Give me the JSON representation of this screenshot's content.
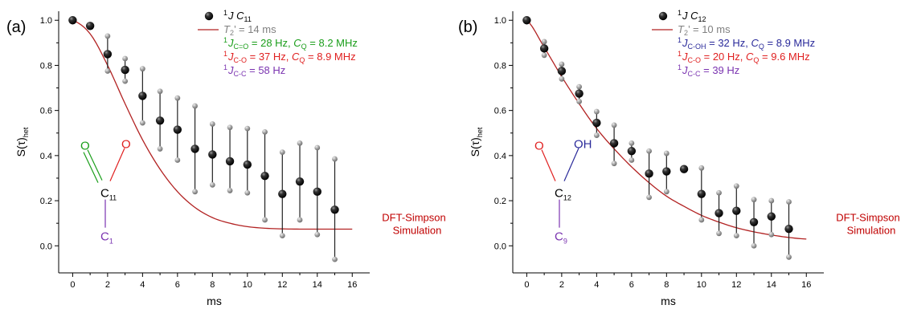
{
  "colors": {
    "sim": "#b22222",
    "gray": "#808080",
    "green": "#1a9e1a",
    "red": "#e02020",
    "purple": "#7a33b0",
    "blue": "#2a2a9a"
  },
  "chart_data": [
    {
      "type": "scatter",
      "panel_label": "(a)",
      "xlabel": "ms",
      "ylabel": "S(τ)",
      "ylabel_sub": "het",
      "xlim": [
        -0.8,
        17
      ],
      "ylim": [
        -0.12,
        1.04
      ],
      "xticks": [
        "0",
        "2",
        "4",
        "6",
        "8",
        "10",
        "12",
        "14",
        "16"
      ],
      "yticks": [
        "0.0",
        "0.2",
        "0.4",
        "0.6",
        "0.8",
        "1.0"
      ],
      "series": [
        {
          "name": "¹J C11",
          "x": [
            0,
            1,
            2,
            3,
            4,
            5,
            6,
            7,
            8,
            9,
            10,
            11,
            12,
            13,
            14,
            15
          ],
          "y": [
            1.0,
            0.975,
            0.85,
            0.78,
            0.665,
            0.555,
            0.515,
            0.43,
            0.405,
            0.375,
            0.36,
            0.31,
            0.23,
            0.285,
            0.24,
            0.16
          ],
          "err_lo": [
            1.0,
            0.975,
            0.775,
            0.73,
            0.545,
            0.43,
            0.38,
            0.24,
            0.27,
            0.245,
            0.235,
            0.115,
            0.045,
            0.115,
            0.05,
            -0.06
          ],
          "err_hi": [
            1.0,
            0.975,
            0.93,
            0.83,
            0.785,
            0.685,
            0.655,
            0.62,
            0.54,
            0.525,
            0.52,
            0.505,
            0.415,
            0.455,
            0.435,
            0.385
          ]
        }
      ],
      "simulation": {
        "T2": 14,
        "x": [
          0,
          1,
          2,
          3,
          4,
          5,
          6,
          7,
          8,
          9,
          10,
          11,
          12,
          13,
          14,
          15,
          16
        ],
        "y": [
          1.0,
          0.94,
          0.8,
          0.63,
          0.47,
          0.34,
          0.24,
          0.17,
          0.125,
          0.1,
          0.085,
          0.078,
          0.075,
          0.074,
          0.074,
          0.074,
          0.074
        ]
      },
      "legend": {
        "data_label": "J C",
        "data_sup": "1",
        "data_sub": "11",
        "t2_label": "= 14 ms",
        "lines": [
          {
            "sub": "C=O",
            "value": "= 28 Hz, ",
            "cq": "= 8.2 MHz",
            "color": "green"
          },
          {
            "sub": "C-O",
            "value": "= 37 Hz, ",
            "cq": "= 8.9 MHz",
            "color": "red"
          },
          {
            "sub": "C-C",
            "value": "= 58 Hz",
            "cq": "",
            "color": "purple"
          }
        ]
      },
      "annotation": [
        "DFT-Simpson",
        "Simulation"
      ],
      "molecule": {
        "o1": "O",
        "o2": "O",
        "c": "C",
        "c_sub": "11",
        "c2": "C",
        "c2_sub": "1"
      }
    },
    {
      "type": "scatter",
      "panel_label": "(b)",
      "xlabel": "ms",
      "ylabel": "S(τ)",
      "ylabel_sub": "het",
      "xlim": [
        -0.8,
        17
      ],
      "ylim": [
        -0.12,
        1.04
      ],
      "xticks": [
        "0",
        "2",
        "4",
        "6",
        "8",
        "10",
        "12",
        "14",
        "16"
      ],
      "yticks": [
        "0.0",
        "0.2",
        "0.4",
        "0.6",
        "0.8",
        "1.0"
      ],
      "series": [
        {
          "name": "¹J C12",
          "x": [
            0,
            1,
            2,
            3,
            4,
            5,
            6,
            7,
            8,
            9,
            10,
            11,
            12,
            13,
            14,
            15
          ],
          "y": [
            1.0,
            0.875,
            0.775,
            0.675,
            0.545,
            0.455,
            0.42,
            0.32,
            0.33,
            0.34,
            0.23,
            0.145,
            0.155,
            0.105,
            0.13,
            0.075
          ],
          "err_lo": [
            1.0,
            0.845,
            0.74,
            0.64,
            0.49,
            0.365,
            0.38,
            0.215,
            0.24,
            0.34,
            0.115,
            0.055,
            0.045,
            0.0,
            0.05,
            -0.05
          ],
          "err_hi": [
            1.0,
            0.905,
            0.805,
            0.705,
            0.595,
            0.535,
            0.455,
            0.42,
            0.41,
            0.34,
            0.345,
            0.235,
            0.265,
            0.205,
            0.2,
            0.195
          ]
        }
      ],
      "simulation": {
        "T2": 10,
        "x": [
          0,
          1,
          2,
          3,
          4,
          5,
          6,
          7,
          8,
          9,
          10,
          11,
          12,
          13,
          14,
          15,
          16
        ],
        "y": [
          1.0,
          0.88,
          0.75,
          0.63,
          0.52,
          0.43,
          0.35,
          0.28,
          0.22,
          0.175,
          0.135,
          0.105,
          0.08,
          0.062,
          0.048,
          0.037,
          0.03
        ]
      },
      "legend": {
        "data_label": "J C",
        "data_sup": "1",
        "data_sub": "12",
        "t2_label": "= 10 ms",
        "lines": [
          {
            "sub": "C-OH",
            "value": "= 32 Hz, ",
            "cq": "= 8.9 MHz",
            "color": "blue"
          },
          {
            "sub": "C-O",
            "value": "= 20 Hz, ",
            "cq": "= 9.6 MHz",
            "color": "red"
          },
          {
            "sub": "C-C",
            "value": "= 39 Hz",
            "cq": "",
            "color": "purple"
          }
        ]
      },
      "annotation": [
        "DFT-Simpson",
        "Simulation"
      ],
      "molecule": {
        "o1": "O",
        "o2": "OH",
        "c": "C",
        "c_sub": "12",
        "c2": "C",
        "c2_sub": "9"
      }
    }
  ]
}
